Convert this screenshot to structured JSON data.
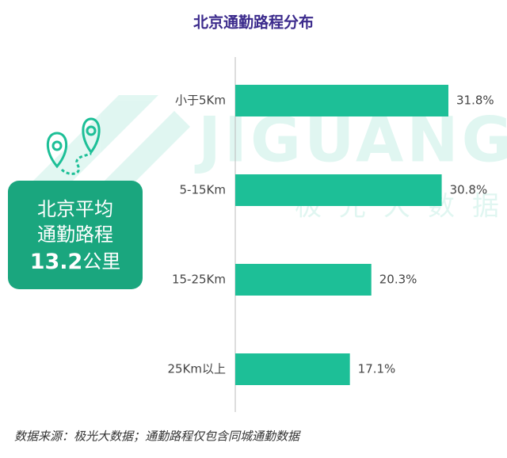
{
  "chart_data": {
    "type": "bar",
    "orientation": "horizontal",
    "title": "北京通勤路程分布",
    "categories": [
      "小于5Km",
      "5-15Km",
      "15-25Km",
      "25Km以上"
    ],
    "values": [
      31.8,
      30.8,
      20.3,
      17.1
    ],
    "value_labels": [
      "31.8%",
      "30.8%",
      "20.3%",
      "17.1%"
    ],
    "color": "#1dbf97",
    "annotation": {
      "lines": [
        "北京平均",
        "通勤路程"
      ],
      "value": 13.2,
      "unit": "公里"
    },
    "watermark": [
      "JIGUANG",
      "极光大数据"
    ],
    "source": "数据来源：极光大数据；通勤路程仅包含同城通勤数据"
  }
}
